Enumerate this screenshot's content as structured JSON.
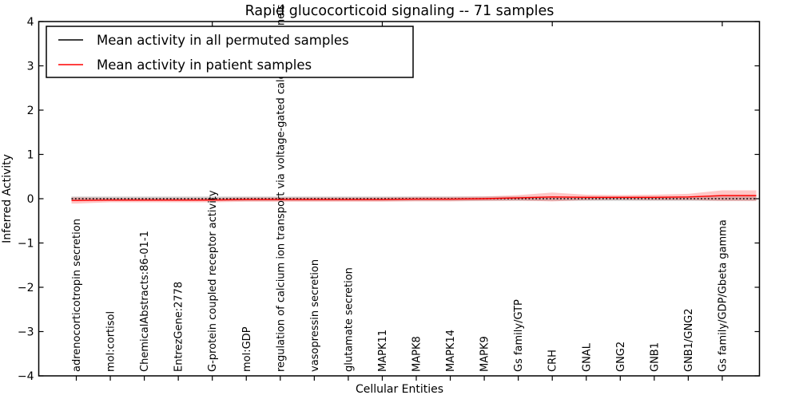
{
  "chart_data": {
    "type": "line",
    "title": "Rapid glucocorticoid signaling -- 71 samples",
    "xlabel": "Cellular Entities",
    "ylabel": "Inferred Activity",
    "ylim": [
      -4,
      4
    ],
    "y_ticks": [
      4,
      3,
      2,
      1,
      0,
      -1,
      -2,
      -3,
      -4
    ],
    "grid": false,
    "legend_position": "upper left",
    "categories": [
      "adrenocorticotropin secretion",
      "mol:cortisol",
      "ChemicalAbstracts:86-01-1",
      "EntrezGene:2778",
      "G-protein coupled receptor activity",
      "mol:GDP",
      "regulation of calcium ion transport via voltage-gated calcium channels",
      "vasopressin secretion",
      "glutamate secretion",
      "MAPK11",
      "MAPK8",
      "MAPK14",
      "MAPK9",
      "Gs family/GTP",
      "CRH",
      "GNAL",
      "GNG2",
      "GNB1",
      "GNB1/GNG2",
      "Gs family/GDP/Gbeta gamma"
    ],
    "series": [
      {
        "name": "Mean activity in all permuted samples",
        "color": "#000000",
        "style": "dotted",
        "values": [
          0,
          0,
          0,
          0,
          0,
          0,
          0,
          0,
          0,
          0,
          0,
          0,
          0,
          0,
          0,
          0,
          0,
          0,
          0,
          0
        ],
        "band": [
          0.05,
          0.05,
          0.05,
          0.05,
          0.05,
          0.05,
          0.05,
          0.05,
          0.05,
          0.05,
          0.05,
          0.05,
          0.05,
          0.05,
          0.05,
          0.05,
          0.05,
          0.05,
          0.05,
          0.05
        ]
      },
      {
        "name": "Mean activity in patient samples",
        "color": "#ff0000",
        "style": "solid",
        "values": [
          -0.04,
          -0.03,
          -0.03,
          -0.03,
          -0.03,
          -0.02,
          -0.02,
          -0.02,
          -0.02,
          -0.02,
          -0.01,
          -0.01,
          0.0,
          0.02,
          0.04,
          0.03,
          0.03,
          0.03,
          0.04,
          0.07
        ],
        "band": [
          0.07,
          0.05,
          0.05,
          0.05,
          0.05,
          0.05,
          0.05,
          0.05,
          0.05,
          0.05,
          0.05,
          0.05,
          0.05,
          0.06,
          0.1,
          0.06,
          0.05,
          0.06,
          0.07,
          0.12
        ]
      }
    ]
  }
}
